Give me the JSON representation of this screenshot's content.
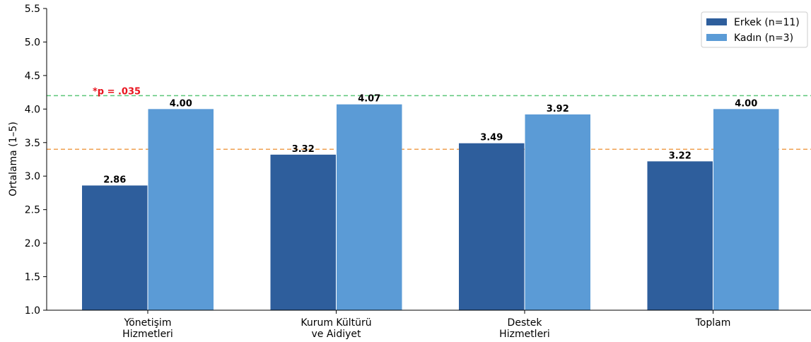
{
  "chart_data": {
    "type": "bar",
    "categories": [
      [
        "Yönetişim",
        "Hizmetleri"
      ],
      [
        "Kurum Kültürü",
        "ve Aidiyet"
      ],
      [
        "Destek",
        "Hizmetleri"
      ],
      [
        "Toplam"
      ]
    ],
    "series": [
      {
        "name": "Erkek (n=11)",
        "values": [
          2.86,
          3.32,
          3.49,
          3.22
        ],
        "labels": [
          "2.86",
          "3.32",
          "3.49",
          "3.22"
        ],
        "color": "#2e5e9c"
      },
      {
        "name": "Kadın (n=3)",
        "values": [
          4.0,
          4.07,
          3.92,
          4.0
        ],
        "labels": [
          "4.00",
          "4.07",
          "3.92",
          "4.00"
        ],
        "color": "#5b9bd6"
      }
    ],
    "ylabel": "Ortalama (1–5)",
    "ylim": [
      1.0,
      5.5
    ],
    "yticks": [
      "1.0",
      "1.5",
      "2.0",
      "2.5",
      "3.0",
      "3.5",
      "4.0",
      "4.5",
      "5.0",
      "5.5"
    ],
    "reference_lines": [
      {
        "value": 4.2,
        "color": "#5cc77a"
      },
      {
        "value": 3.4,
        "color": "#f0a050"
      }
    ],
    "annotations": [
      {
        "text": "*p = .035",
        "category_index": 0,
        "value": 4.2,
        "color": "#e8141e"
      }
    ],
    "legend_position": "top-right",
    "grid": false
  }
}
